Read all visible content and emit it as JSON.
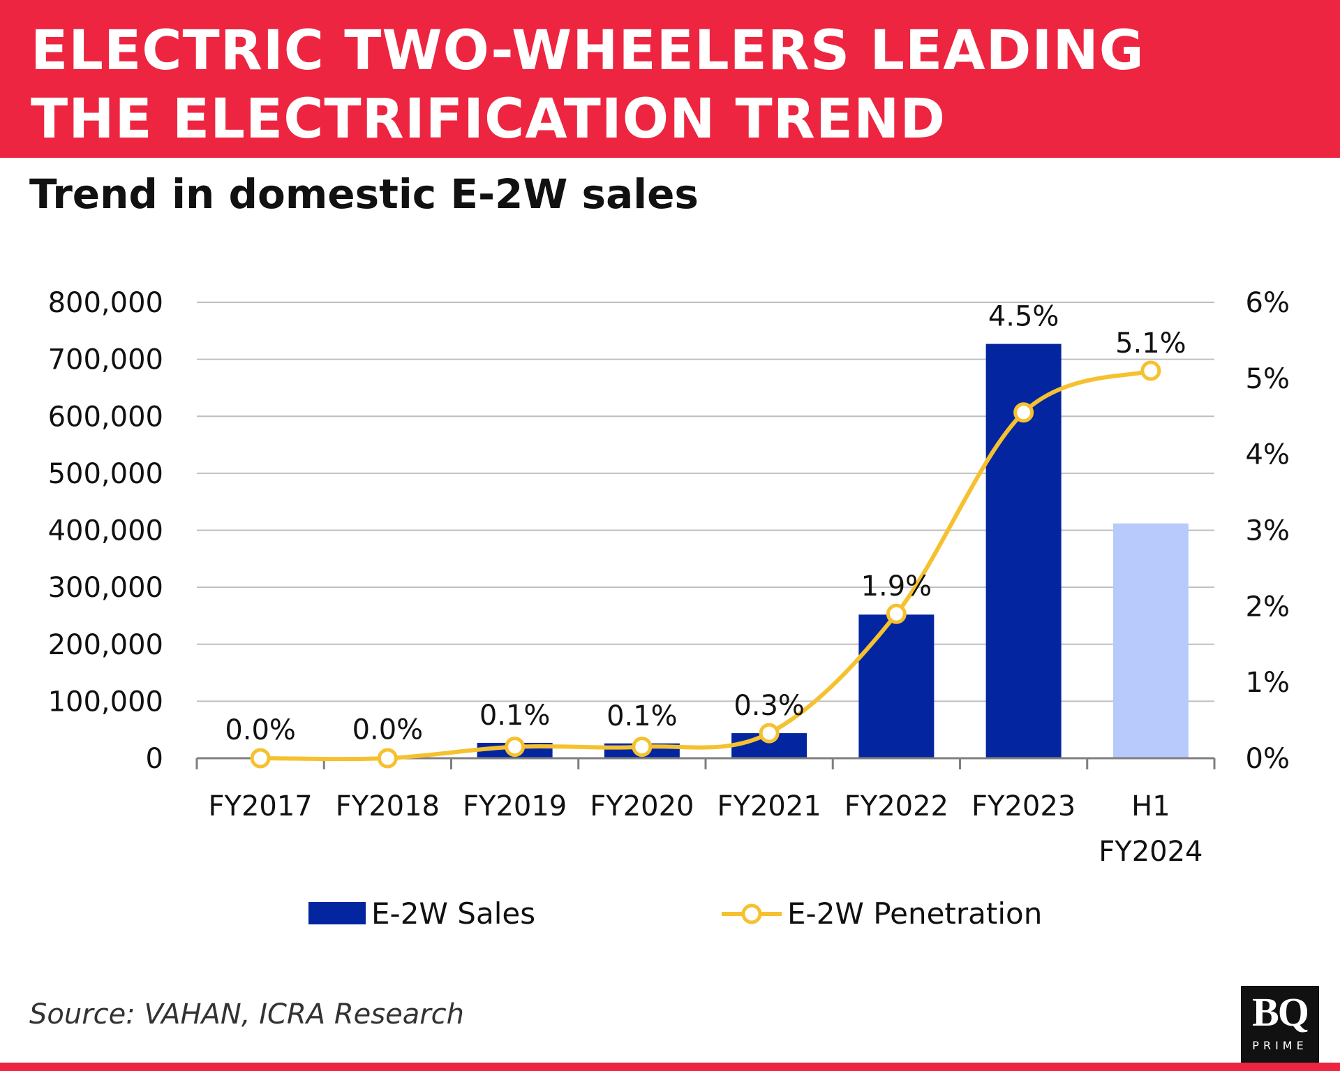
{
  "header": {
    "title_line1": "ELECTRIC TWO-WHEELERS LEADING",
    "title_line2": "THE ELECTRIFICATION TREND"
  },
  "subtitle": "Trend in domestic E-2W sales",
  "source": "Source: VAHAN, ICRA Research",
  "logo": {
    "mark": "BQ",
    "sub": "PRIME"
  },
  "colors": {
    "header_bg": "#ed2540",
    "bar_actual": "#0326a0",
    "bar_half_year": "#b8c9fb",
    "line": "#f6c12f",
    "grid": "#bfbfbf"
  },
  "chart_data": {
    "type": "bar+line",
    "title": "Trend in domestic E-2W sales",
    "categories": [
      [
        "FY2017"
      ],
      [
        "FY2018"
      ],
      [
        "FY2019"
      ],
      [
        "FY2020"
      ],
      [
        "FY2021"
      ],
      [
        "FY2022"
      ],
      [
        "FY2023"
      ],
      [
        "H1",
        "FY2024"
      ]
    ],
    "left_axis": {
      "ylim": [
        0,
        800000
      ],
      "ticks": [
        "0",
        "100,000",
        "200,000",
        "300,000",
        "400,000",
        "500,000",
        "600,000",
        "700,000",
        "800,000"
      ]
    },
    "right_axis": {
      "ylim": [
        0,
        6
      ],
      "ticks": [
        "0%",
        "1%",
        "2%",
        "3%",
        "4%",
        "5%",
        "6%"
      ]
    },
    "series": [
      {
        "name": "E-2W Sales",
        "kind": "bar",
        "axis": "left",
        "values": [
          1000,
          2000,
          27000,
          26000,
          44000,
          252000,
          727000,
          412000
        ]
      },
      {
        "name": "E-2W Penetration",
        "kind": "line",
        "axis": "right",
        "values": [
          0.0,
          0.0,
          0.15,
          0.15,
          0.33,
          1.9,
          4.55,
          5.1
        ],
        "labels": [
          "0.0%",
          "0.0%",
          "0.1%",
          "0.1%",
          "0.3%",
          "1.9%",
          "4.5%",
          "5.1%"
        ]
      }
    ],
    "legend": [
      "E-2W Sales",
      "E-2W Penetration"
    ],
    "legend_position": "bottom",
    "grid": true
  }
}
